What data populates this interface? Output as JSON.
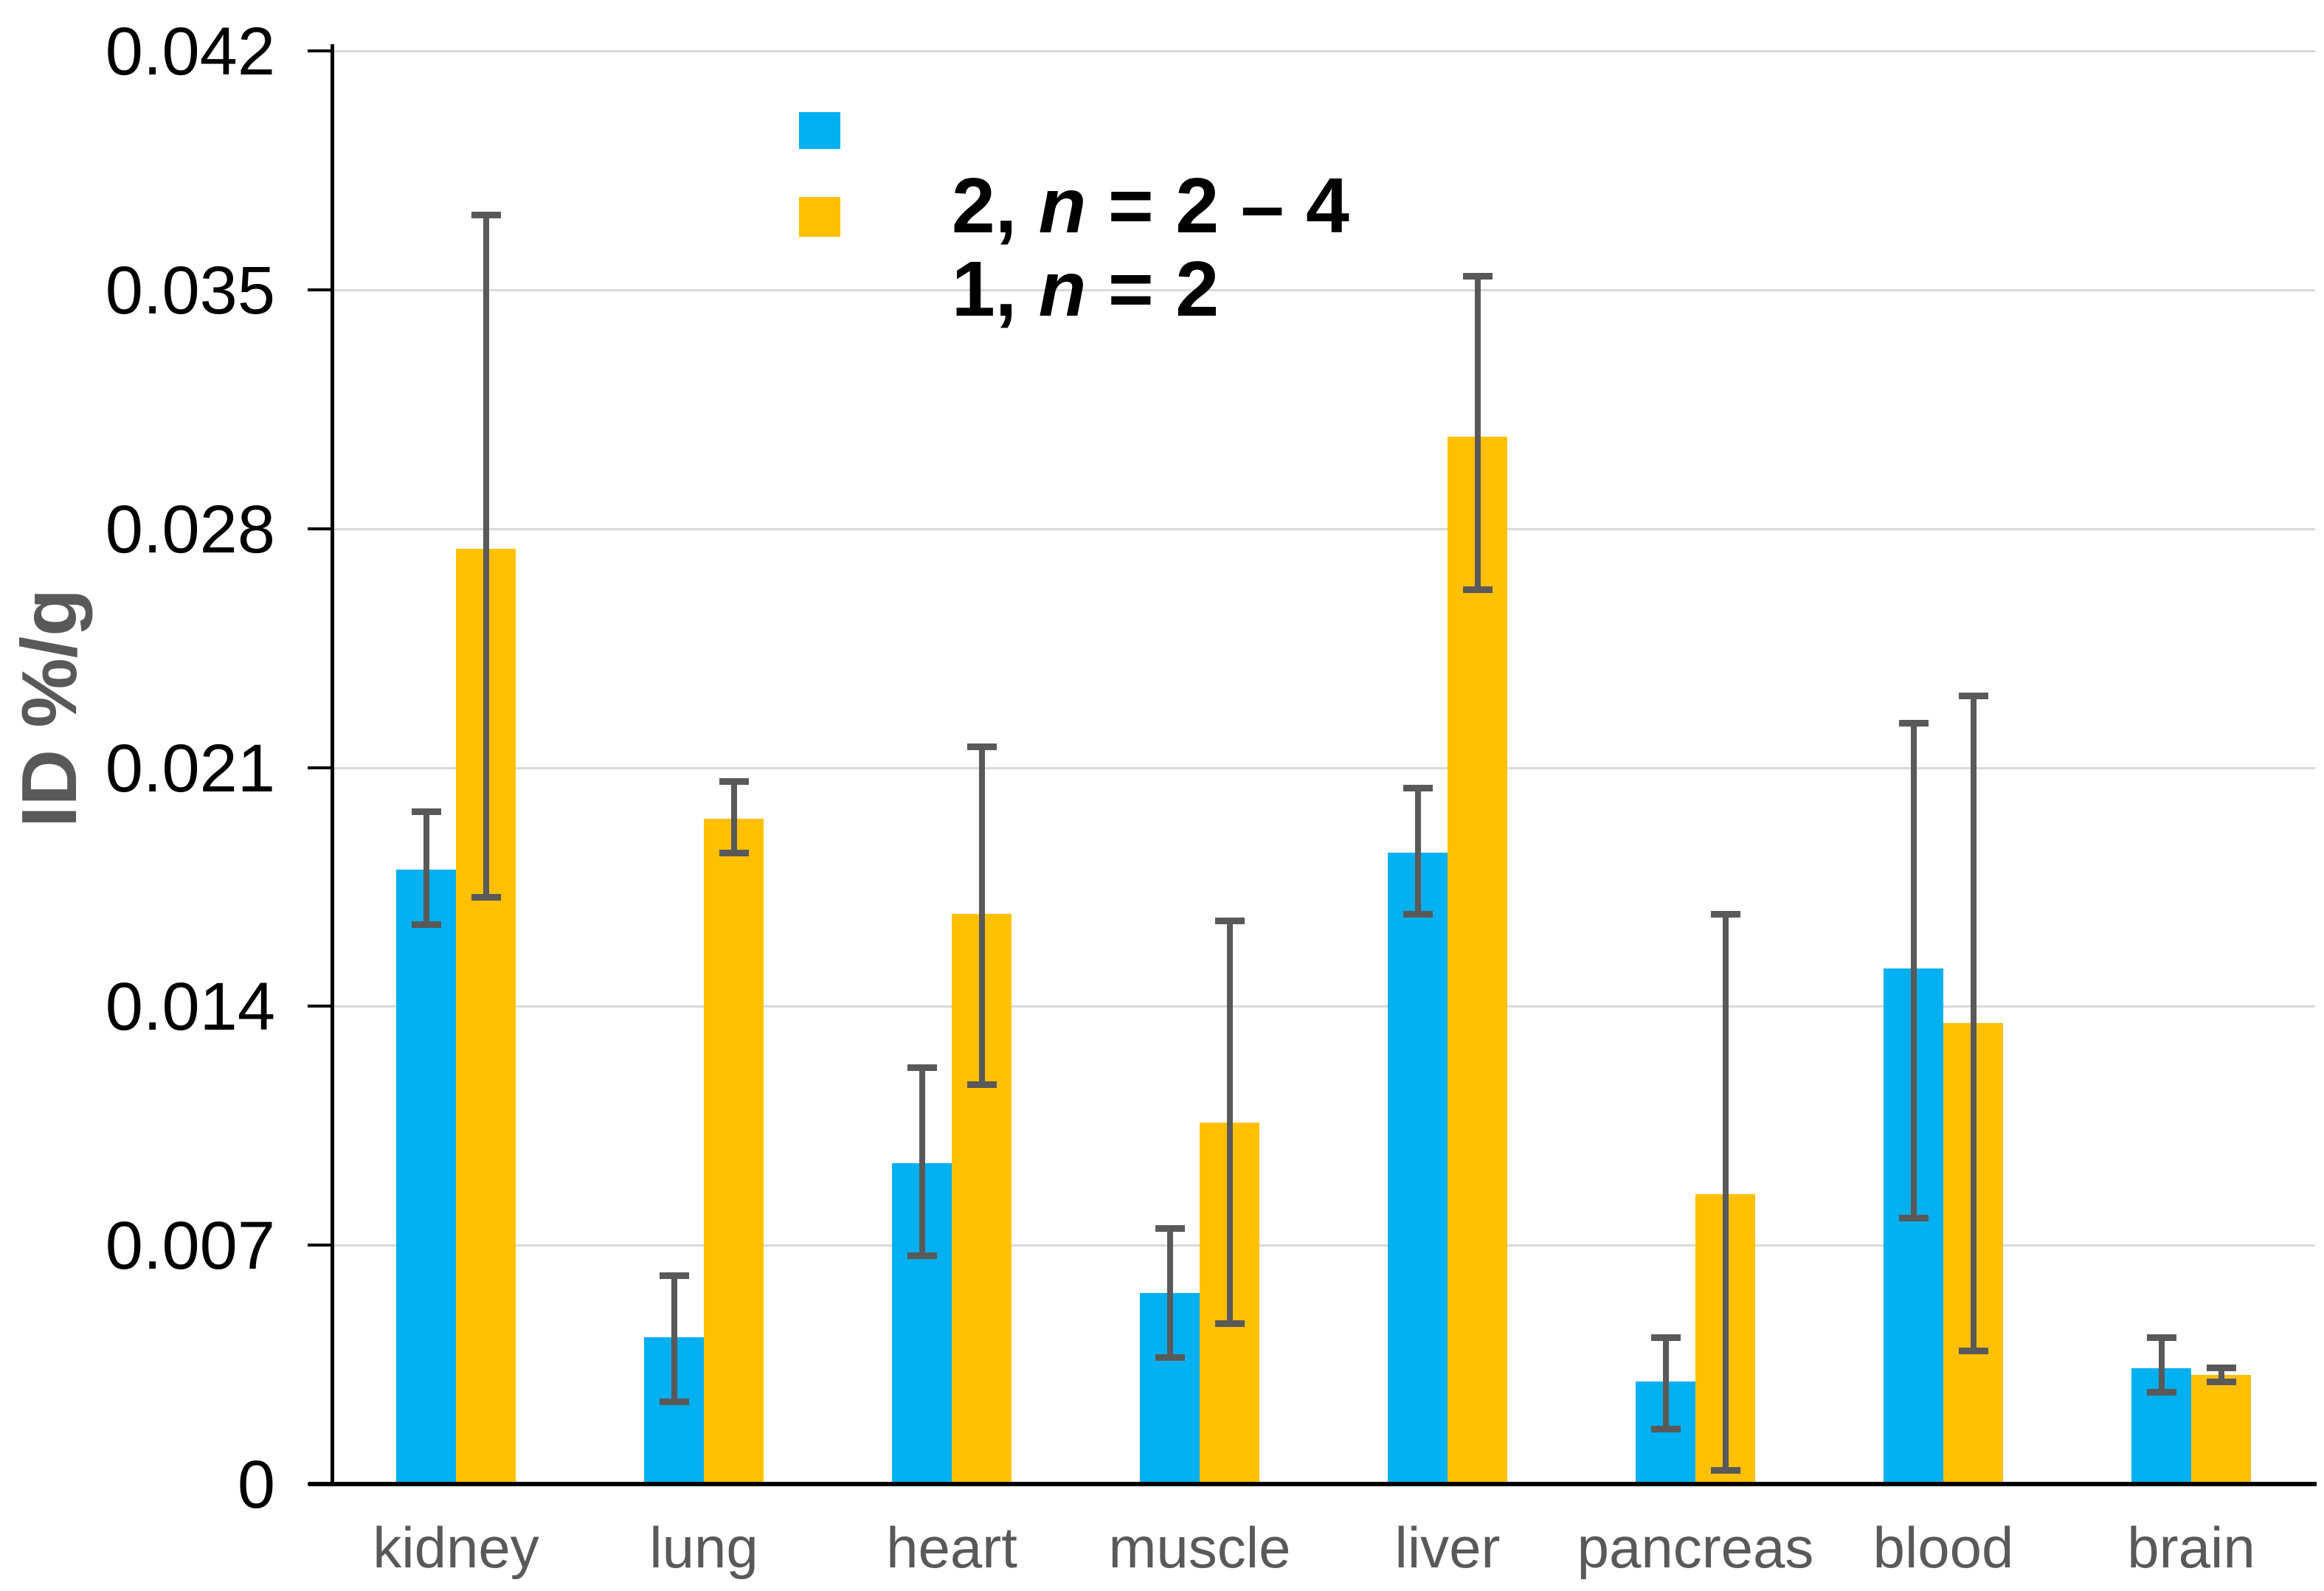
{
  "chart_data": {
    "type": "bar",
    "title": "",
    "xlabel": "",
    "ylabel": "ID %/g",
    "ylim": [
      0,
      0.042
    ],
    "grid": true,
    "legend_position": "top-center-inside",
    "y_ticks": [
      {
        "label": "0.042",
        "value": 0.042
      },
      {
        "label": "0.035",
        "value": 0.035
      },
      {
        "label": "0.028",
        "value": 0.028
      },
      {
        "label": "0.021",
        "value": 0.021
      },
      {
        "label": "0.014",
        "value": 0.014
      },
      {
        "label": "0.007",
        "value": 0.007
      },
      {
        "label": "0",
        "value": 0
      }
    ],
    "categories": [
      "kidney",
      "lung",
      "heart",
      "muscle",
      "liver",
      "pancreas",
      "blood",
      "brain"
    ],
    "series": [
      {
        "name": "2, n = 2 – 4",
        "label_bold": "2",
        "label_sep": ", ",
        "label_n": "n",
        "label_rest": " = 2 – 4",
        "color": "#00B0F0",
        "values": [
          0.018,
          0.0043,
          0.0094,
          0.0056,
          0.0185,
          0.003,
          0.0151,
          0.0034
        ],
        "err_down": [
          0.0016,
          0.0019,
          0.0027,
          0.0019,
          0.0018,
          0.0014,
          0.0073,
          0.0007
        ],
        "err_up": [
          0.0017,
          0.0018,
          0.0028,
          0.0019,
          0.0019,
          0.0013,
          0.0072,
          0.0009
        ]
      },
      {
        "name": "1, n = 2",
        "label_bold": "1",
        "label_sep": ", ",
        "label_n": "n",
        "label_rest": " = 2",
        "color": "#FFC000",
        "values": [
          0.0274,
          0.0195,
          0.0167,
          0.0106,
          0.0307,
          0.0085,
          0.0135,
          0.0032
        ],
        "err_down": [
          0.0102,
          0.001,
          0.005,
          0.0059,
          0.0045,
          0.0081,
          0.0096,
          0.0002
        ],
        "err_up": [
          0.0098,
          0.0011,
          0.0049,
          0.0059,
          0.0047,
          0.0082,
          0.0096,
          0.0002
        ]
      }
    ],
    "colors": {
      "series_2_blue": "#00B0F0",
      "series_1_yellow": "#FFC000",
      "error_bar": "#595959",
      "gridline": "#D9D9D9",
      "axis": "#000000",
      "tick_label": "#000000",
      "category_label": "#595959",
      "axis_title": "#595959",
      "background": "#FFFFFF"
    }
  }
}
